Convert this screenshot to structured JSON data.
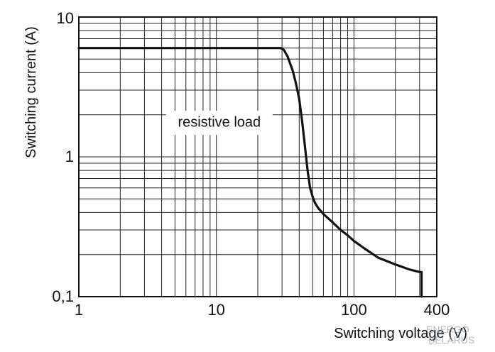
{
  "chart_data": {
    "type": "line",
    "xlabel": "Switching voltage (V)",
    "ylabel": "Switching current (A)",
    "xscale": "log",
    "yscale": "log",
    "xlim": [
      1,
      400
    ],
    "ylim": [
      0.1,
      10
    ],
    "grid": true,
    "xticks": [
      1,
      10,
      100,
      400
    ],
    "xtick_labels": [
      "1",
      "10",
      "100",
      "400"
    ],
    "yticks": [
      0.1,
      1,
      10
    ],
    "ytick_labels": [
      "0,1",
      "1",
      "10"
    ],
    "annotations": [
      {
        "text": "resistive load",
        "x": 10.5,
        "y": 1.75
      }
    ],
    "series": [
      {
        "x": [
          1,
          10,
          28,
          29,
          30,
          31,
          33,
          36,
          38,
          40,
          42,
          44,
          46,
          48,
          50,
          52,
          55,
          60,
          70,
          80,
          90,
          100,
          120,
          150,
          200,
          250,
          300,
          310,
          310
        ],
        "y": [
          6,
          6,
          6,
          6,
          5.95,
          5.8,
          5.2,
          4.1,
          3.3,
          2.6,
          1.8,
          1.2,
          0.8,
          0.6,
          0.52,
          0.47,
          0.43,
          0.39,
          0.34,
          0.3,
          0.275,
          0.25,
          0.22,
          0.19,
          0.17,
          0.157,
          0.15,
          0.15,
          0.1
        ]
      }
    ]
  },
  "watermark": {
    "line1": "ENERGO",
    "line2": "BELARUS"
  }
}
